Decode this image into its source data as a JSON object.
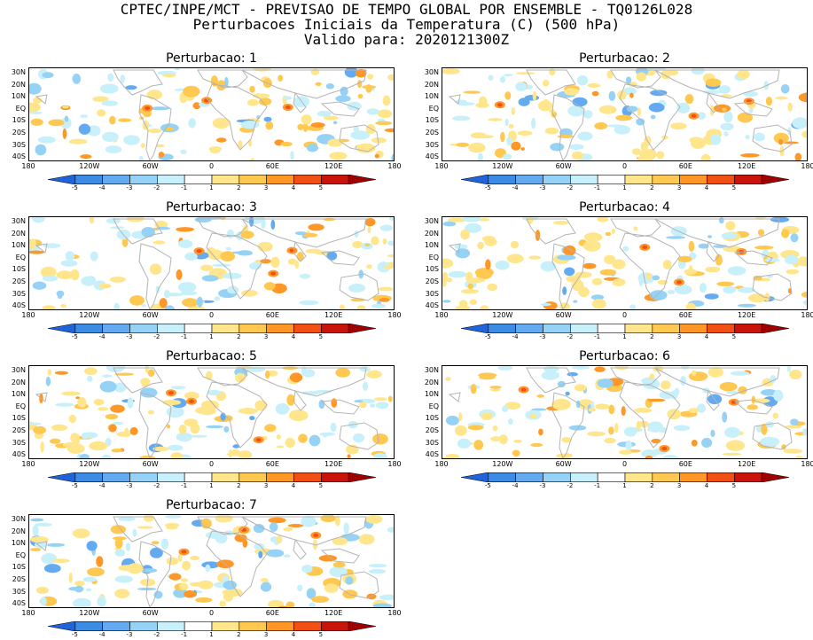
{
  "header": {
    "line1": "CPTEC/INPE/MCT - PREVISAO DE TEMPO GLOBAL POR ENSEMBLE - TQ0126L028",
    "line2": "Perturbacoes Iniciais da Temperatura (C) (500 hPa)",
    "line3": "Valido para: 2020121300Z"
  },
  "panels": [
    {
      "title": "Perturbacao: 1"
    },
    {
      "title": "Perturbacao: 2"
    },
    {
      "title": "Perturbacao: 3"
    },
    {
      "title": "Perturbacao: 4"
    },
    {
      "title": "Perturbacao: 5"
    },
    {
      "title": "Perturbacao: 6"
    },
    {
      "title": "Perturbacao: 7"
    }
  ],
  "lat_labels": [
    "30N",
    "20N",
    "10N",
    "EQ",
    "10S",
    "20S",
    "30S",
    "40S"
  ],
  "lon_labels": [
    "180",
    "120W",
    "60W",
    "0",
    "60E",
    "120E",
    "180"
  ],
  "colorbar": {
    "labels": [
      "-5",
      "-4",
      "-3",
      "-2",
      "-1",
      "1",
      "2",
      "3",
      "4",
      "5"
    ],
    "colors": [
      "#1f64dc",
      "#3c8ce6",
      "#64aaf0",
      "#96d2f5",
      "#c8f0fa",
      "#ffffff",
      "#ffe68c",
      "#ffc850",
      "#ff9628",
      "#f05014",
      "#c8140a",
      "#a00000"
    ]
  },
  "colors": {
    "coast": "#b4b4b4",
    "frame": "#000000"
  }
}
